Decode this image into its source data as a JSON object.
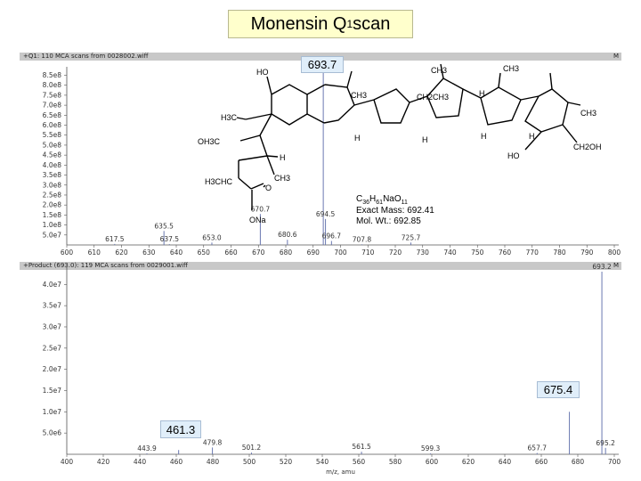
{
  "title": {
    "main": "Monensin Q",
    "sub": "1",
    "rest": " scan"
  },
  "chart_data": [
    {
      "type": "line",
      "header": "+Q1: 110 MCA scans from 0028002.wiff",
      "header_right": "M",
      "xlim": [
        600,
        800
      ],
      "xticks": [
        600,
        610,
        620,
        630,
        640,
        650,
        660,
        670,
        680,
        690,
        700,
        710,
        720,
        730,
        740,
        750,
        760,
        770,
        780,
        790,
        800
      ],
      "ylim": [
        0,
        870000000.0
      ],
      "yticks": [
        {
          "v": 50000000.0,
          "label": "5.0e7"
        },
        {
          "v": 100000000.0,
          "label": "1.0e8"
        },
        {
          "v": 150000000.0,
          "label": "1.5e8"
        },
        {
          "v": 200000000.0,
          "label": "2.0e8"
        },
        {
          "v": 250000000.0,
          "label": "2.5e8"
        },
        {
          "v": 300000000.0,
          "label": "3.0e8"
        },
        {
          "v": 350000000.0,
          "label": "3.5e8"
        },
        {
          "v": 400000000.0,
          "label": "4.0e8"
        },
        {
          "v": 450000000.0,
          "label": "4.5e8"
        },
        {
          "v": 500000000.0,
          "label": "5.0e8"
        },
        {
          "v": 550000000.0,
          "label": "5.5e8"
        },
        {
          "v": 600000000.0,
          "label": "6.0e8"
        },
        {
          "v": 650000000.0,
          "label": "6.5e8"
        },
        {
          "v": 700000000.0,
          "label": "7.0e8"
        },
        {
          "v": 750000000.0,
          "label": "7.5e8"
        },
        {
          "v": 800000000.0,
          "label": "8.0e8"
        },
        {
          "v": 850000000.0,
          "label": "8.5e8"
        }
      ],
      "peaks": [
        {
          "x": 617.5,
          "y": 5000000.0,
          "label": "617.5"
        },
        {
          "x": 635.5,
          "y": 70000000.0,
          "label": "635.5"
        },
        {
          "x": 637.5,
          "y": 4000000.0,
          "label": "637.5"
        },
        {
          "x": 653.0,
          "y": 12000000.0,
          "label": "653.0"
        },
        {
          "x": 670.7,
          "y": 155000000.0,
          "label": "670.7"
        },
        {
          "x": 680.6,
          "y": 26000000.0,
          "label": "680.6"
        },
        {
          "x": 693.7,
          "y": 870000000.0,
          "label": ""
        },
        {
          "x": 694.5,
          "y": 130000000.0,
          "label": "694.5"
        },
        {
          "x": 696.7,
          "y": 20000000.0,
          "label": "696.7"
        },
        {
          "x": 707.8,
          "y": 3000000.0,
          "label": "707.8"
        },
        {
          "x": 725.7,
          "y": 12000000.0,
          "label": "725.7"
        }
      ],
      "callout": "693.7"
    },
    {
      "type": "line",
      "header": "+Product (693.0): 119 MCA scans from 0029001.wiff",
      "header_right": "M",
      "xlim": [
        400,
        700
      ],
      "xticks": [
        400,
        420,
        440,
        460,
        480,
        500,
        520,
        540,
        560,
        580,
        600,
        620,
        640,
        660,
        680,
        700
      ],
      "xlabel": "m/z, amu",
      "ylim": [
        0,
        43000000.0
      ],
      "yticks": [
        {
          "v": 5000000.0,
          "label": "5.0e6"
        },
        {
          "v": 10000000.0,
          "label": "1.0e7"
        },
        {
          "v": 15000000.0,
          "label": "1.5e7"
        },
        {
          "v": 20000000.0,
          "label": "2.0e7"
        },
        {
          "v": 25000000.0,
          "label": "2.5e7"
        },
        {
          "v": 30000000.0,
          "label": "3.0e7"
        },
        {
          "v": 35000000.0,
          "label": "3.5e7"
        },
        {
          "v": 40000000.0,
          "label": "4.0e7"
        }
      ],
      "peaks": [
        {
          "x": 443.9,
          "y": 200000.0,
          "label": "443.9"
        },
        {
          "x": 461.3,
          "y": 1000000.0,
          "label": ""
        },
        {
          "x": 479.8,
          "y": 1600000.0,
          "label": "479.8"
        },
        {
          "x": 501.2,
          "y": 400000.0,
          "label": "501.2"
        },
        {
          "x": 561.5,
          "y": 600000.0,
          "label": "561.5"
        },
        {
          "x": 599.3,
          "y": 200000.0,
          "label": "599.3"
        },
        {
          "x": 657.7,
          "y": 300000.0,
          "label": "657.7"
        },
        {
          "x": 675.4,
          "y": 10000000.0,
          "label": ""
        },
        {
          "x": 693.2,
          "y": 43000000.0,
          "label": "693.2"
        },
        {
          "x": 695.2,
          "y": 1500000.0,
          "label": "695.2"
        }
      ],
      "callouts": [
        "675.4",
        "461.3"
      ]
    }
  ],
  "structure": {
    "formula": "C36H61NaO11",
    "formula_parts": [
      "C",
      "36",
      "H",
      "61",
      "NaO",
      "11"
    ],
    "exact_mass": "Exact Mass: 692.41",
    "mol_wt": "Mol. Wt.: 692.85",
    "labels": [
      "HO",
      "CH3",
      "H3C",
      "OH3C",
      "H3CHC",
      "ONa",
      "CH3",
      "H",
      "H",
      "H",
      "H",
      "CH2CH3",
      "CH3",
      "CH3",
      "H",
      "H",
      "CH3",
      "HO",
      "CH2OH",
      "O"
    ]
  }
}
